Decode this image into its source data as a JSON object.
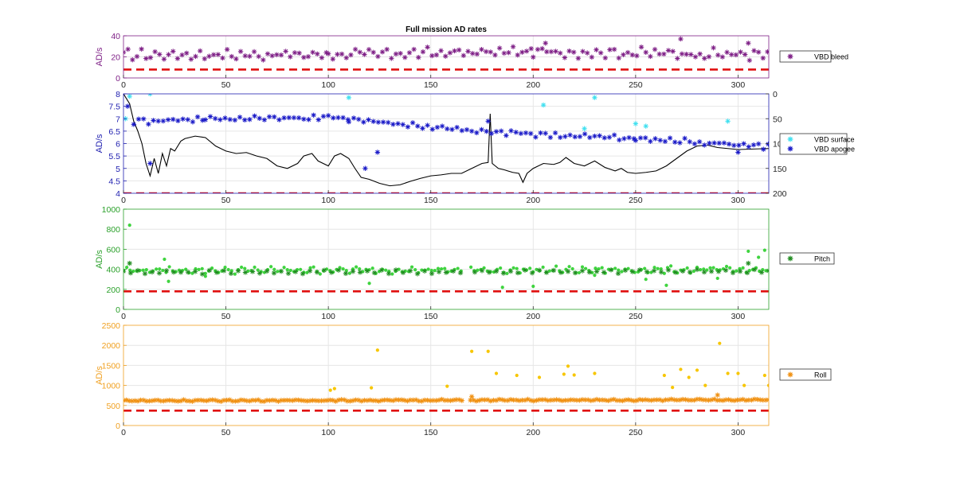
{
  "figure_title": "Full mission AD rates",
  "chart_data": [
    {
      "id": "bleed",
      "type": "scatter",
      "ylabel": "AD/s",
      "xlim": [
        0,
        315
      ],
      "ylim": [
        0,
        40
      ],
      "xticks": [
        0,
        50,
        100,
        150,
        200,
        250,
        300
      ],
      "yticks": [
        0,
        20,
        40
      ],
      "color": "#7e1f86",
      "threshold": 8,
      "gaps": [],
      "legend": [
        {
          "name": "VBD bleed",
          "color": "#7e1f86"
        }
      ],
      "series": [
        {
          "name": "VBD bleed",
          "color": "#7e1f86",
          "marker": "star",
          "segments": [
            [
              0,
              22,
              100,
              22
            ],
            [
              100,
              22,
              200,
              25
            ],
            [
              200,
              25,
              315,
              22
            ]
          ],
          "spread": 6,
          "step": 2.2,
          "outliers": [
            [
              272,
              37
            ],
            [
              305,
              33
            ],
            [
              206,
              33
            ]
          ]
        }
      ]
    },
    {
      "id": "vbd",
      "type": "scatter",
      "ylabel": "AD/s",
      "xlim": [
        0,
        315
      ],
      "ylim": [
        4,
        8
      ],
      "xticks": [
        0,
        50,
        100,
        150,
        200,
        250,
        300
      ],
      "yticks": [
        4,
        4.5,
        5,
        5.5,
        6,
        6.5,
        7,
        7.5,
        8
      ],
      "y2lim": [
        200,
        0
      ],
      "y2ticks": [
        0,
        50,
        100,
        150,
        200
      ],
      "color": "#2020b0",
      "threshold": 4,
      "gaps": [],
      "legend": [
        {
          "name": "VBD surface",
          "color": "#40e0f0"
        },
        {
          "name": "VBD apogee",
          "color": "#1a1ac8"
        }
      ],
      "series": [
        {
          "name": "VBD apogee",
          "color": "#1a1ac8",
          "marker": "star",
          "segments": [
            [
              5,
              6.9,
              40,
              7.0
            ],
            [
              40,
              7.0,
              110,
              7.05
            ],
            [
              110,
              7.0,
              170,
              6.5
            ],
            [
              170,
              6.5,
              250,
              6.2
            ],
            [
              250,
              6.2,
              315,
              5.9
            ]
          ],
          "spread": 0.15,
          "step": 2.4,
          "outliers": [
            [
              13,
              5.2
            ],
            [
              118,
              5.0
            ],
            [
              124,
              5.65
            ],
            [
              178,
              6.9
            ],
            [
              2,
              7.5
            ],
            [
              300,
              5.65
            ]
          ]
        },
        {
          "name": "VBD surface",
          "color": "#40e0f0",
          "marker": "star",
          "segments": [],
          "spread": 0,
          "step": 0,
          "outliers": [
            [
              1,
              7.0
            ],
            [
              3,
              7.9
            ],
            [
              13,
              8.0
            ],
            [
              14,
              8.2
            ],
            [
              110,
              7.85
            ],
            [
              115,
              8.1
            ],
            [
              205,
              7.55
            ],
            [
              230,
              7.85
            ],
            [
              225,
              6.6
            ],
            [
              250,
              6.8
            ],
            [
              255,
              6.7
            ],
            [
              295,
              6.9
            ]
          ]
        }
      ],
      "depth_line": [
        [
          0,
          0
        ],
        [
          3,
          20
        ],
        [
          5,
          55
        ],
        [
          7,
          75
        ],
        [
          9,
          100
        ],
        [
          11,
          140
        ],
        [
          13,
          165
        ],
        [
          15,
          130
        ],
        [
          17,
          160
        ],
        [
          19,
          120
        ],
        [
          21,
          145
        ],
        [
          23,
          110
        ],
        [
          25,
          115
        ],
        [
          28,
          95
        ],
        [
          30,
          90
        ],
        [
          35,
          85
        ],
        [
          40,
          88
        ],
        [
          45,
          105
        ],
        [
          50,
          115
        ],
        [
          55,
          120
        ],
        [
          60,
          118
        ],
        [
          65,
          125
        ],
        [
          70,
          130
        ],
        [
          75,
          145
        ],
        [
          80,
          150
        ],
        [
          85,
          140
        ],
        [
          88,
          125
        ],
        [
          92,
          120
        ],
        [
          95,
          135
        ],
        [
          100,
          145
        ],
        [
          103,
          125
        ],
        [
          106,
          120
        ],
        [
          110,
          130
        ],
        [
          113,
          150
        ],
        [
          116,
          168
        ],
        [
          120,
          172
        ],
        [
          125,
          180
        ],
        [
          130,
          185
        ],
        [
          135,
          183
        ],
        [
          140,
          176
        ],
        [
          145,
          170
        ],
        [
          150,
          165
        ],
        [
          155,
          163
        ],
        [
          160,
          160
        ],
        [
          165,
          160
        ],
        [
          170,
          150
        ],
        [
          175,
          140
        ],
        [
          178,
          138
        ],
        [
          179,
          40
        ],
        [
          180,
          140
        ],
        [
          183,
          150
        ],
        [
          186,
          153
        ],
        [
          190,
          158
        ],
        [
          193,
          160
        ],
        [
          195,
          178
        ],
        [
          197,
          160
        ],
        [
          200,
          150
        ],
        [
          205,
          140
        ],
        [
          210,
          142
        ],
        [
          213,
          138
        ],
        [
          216,
          128
        ],
        [
          220,
          140
        ],
        [
          225,
          145
        ],
        [
          230,
          135
        ],
        [
          235,
          148
        ],
        [
          240,
          155
        ],
        [
          243,
          150
        ],
        [
          246,
          158
        ],
        [
          250,
          160
        ],
        [
          255,
          158
        ],
        [
          260,
          155
        ],
        [
          265,
          145
        ],
        [
          270,
          130
        ],
        [
          275,
          115
        ],
        [
          280,
          105
        ],
        [
          285,
          103
        ],
        [
          290,
          108
        ],
        [
          300,
          112
        ],
        [
          315,
          110
        ]
      ]
    },
    {
      "id": "pitch",
      "type": "scatter",
      "ylabel": "AD/s",
      "xlim": [
        0,
        315
      ],
      "ylim": [
        0,
        1000
      ],
      "xticks": [
        0,
        50,
        100,
        150,
        200,
        250,
        300
      ],
      "yticks": [
        0,
        200,
        400,
        600,
        800,
        1000
      ],
      "color": "#2aa02a",
      "threshold": 180,
      "gaps": [
        [
          166,
          169
        ]
      ],
      "legend": [
        {
          "name": "Pitch",
          "color": "#1f8c1f"
        }
      ],
      "series": [
        {
          "name": "Pitch dots",
          "color": "#3fd43f",
          "marker": "dot",
          "segments": [
            [
              0,
              390,
              315,
              395
            ]
          ],
          "spread": 40,
          "step": 1.6,
          "outliers": [
            [
              3,
              840
            ],
            [
              20,
              500
            ],
            [
              22,
              280
            ],
            [
              40,
              330
            ],
            [
              120,
              260
            ],
            [
              185,
              220
            ],
            [
              200,
              230
            ],
            [
              230,
              340
            ],
            [
              255,
              300
            ],
            [
              265,
              240
            ],
            [
              290,
              310
            ],
            [
              305,
              580
            ],
            [
              310,
              520
            ],
            [
              313,
              590
            ]
          ]
        },
        {
          "name": "Pitch",
          "color": "#1f8c1f",
          "marker": "star",
          "segments": [
            [
              0,
              370,
              315,
              380
            ]
          ],
          "spread": 20,
          "step": 3.5,
          "outliers": [
            [
              3,
              460
            ],
            [
              305,
              460
            ]
          ]
        }
      ]
    },
    {
      "id": "roll",
      "type": "scatter",
      "ylabel": "AD/s",
      "xlim": [
        0,
        315
      ],
      "ylim": [
        0,
        2500
      ],
      "xticks": [
        0,
        50,
        100,
        150,
        200,
        250,
        300
      ],
      "yticks": [
        0,
        500,
        1000,
        1500,
        2000,
        2500
      ],
      "color": "#f0a020",
      "threshold": 370,
      "gaps": [
        [
          166,
          169
        ]
      ],
      "legend": [
        {
          "name": "Roll",
          "color": "#f09010"
        }
      ],
      "series": [
        {
          "name": "Roll",
          "color": "#f09010",
          "marker": "star",
          "segments": [
            [
              0,
              620,
              315,
              640
            ]
          ],
          "spread": 25,
          "step": 1.4,
          "outliers": [
            [
              170,
              720
            ],
            [
              290,
              760
            ]
          ]
        },
        {
          "name": "Roll dots",
          "color": "#f7c600",
          "marker": "dot",
          "segments": [],
          "spread": 0,
          "step": 0,
          "outliers": [
            [
              101,
              880
            ],
            [
              103,
              920
            ],
            [
              121,
              940
            ],
            [
              124,
              1880
            ],
            [
              158,
              980
            ],
            [
              170,
              1850
            ],
            [
              178,
              1850
            ],
            [
              182,
              1300
            ],
            [
              192,
              1250
            ],
            [
              203,
              1200
            ],
            [
              215,
              1280
            ],
            [
              217,
              1480
            ],
            [
              220,
              1260
            ],
            [
              230,
              1300
            ],
            [
              264,
              1250
            ],
            [
              268,
              950
            ],
            [
              272,
              1400
            ],
            [
              276,
              1200
            ],
            [
              280,
              1380
            ],
            [
              284,
              1000
            ],
            [
              291,
              2050
            ],
            [
              295,
              1300
            ],
            [
              300,
              1300
            ],
            [
              303,
              1000
            ],
            [
              313,
              1250
            ],
            [
              315,
              1000
            ]
          ]
        }
      ]
    }
  ]
}
